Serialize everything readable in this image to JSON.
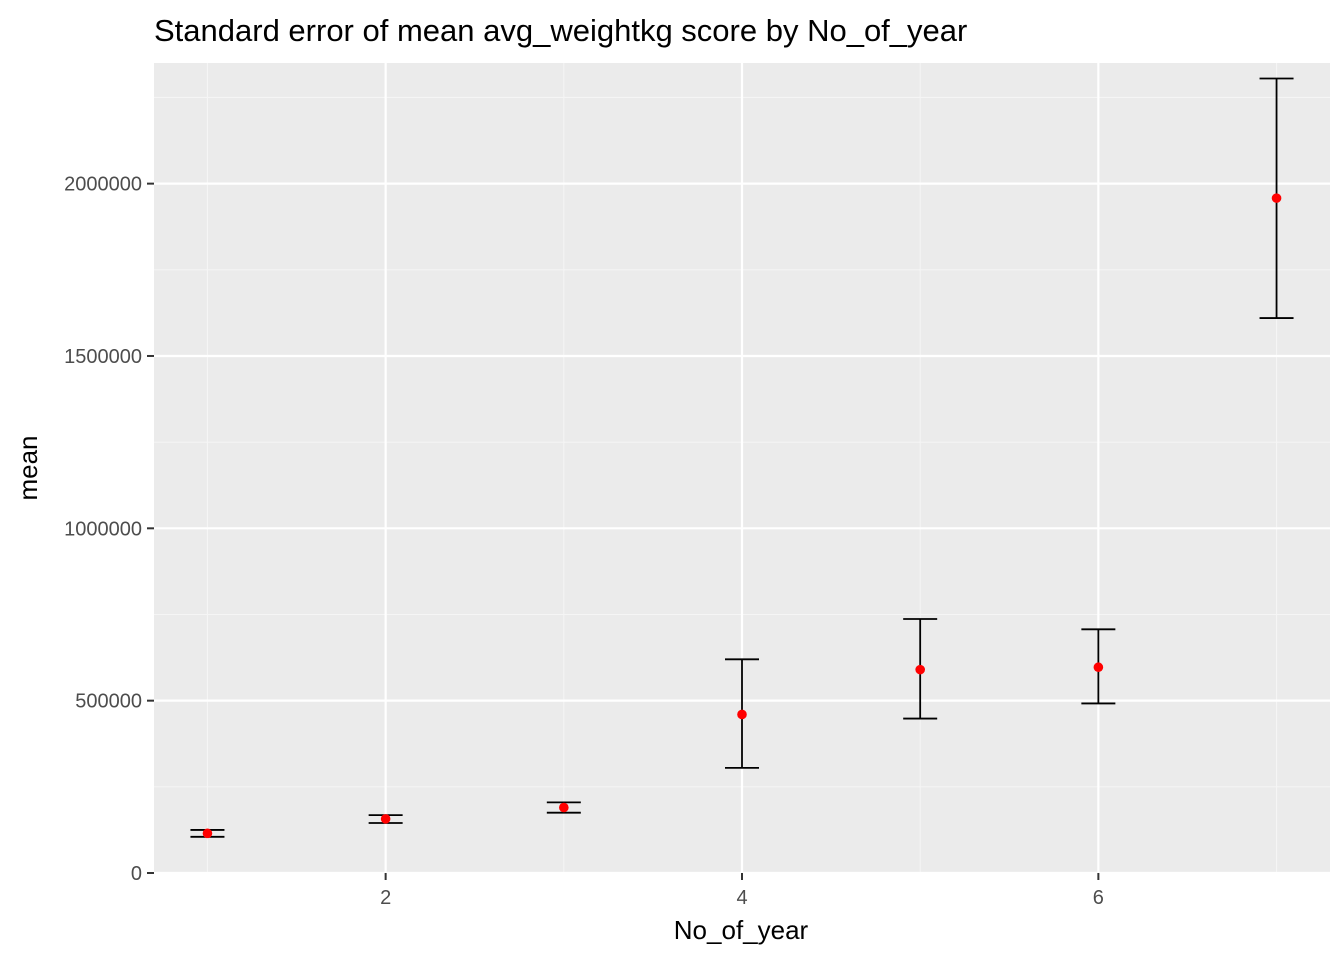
{
  "chart_data": {
    "type": "scatter",
    "title": "Standard error of mean avg_weightkg score by No_of_year",
    "xlabel": "No_of_year",
    "ylabel": "mean",
    "xlim": [
      0.7,
      7.3
    ],
    "ylim": [
      0,
      2350000
    ],
    "x_ticks": [
      2,
      4,
      6
    ],
    "x_tick_labels": [
      "2",
      "4",
      "6"
    ],
    "y_ticks": [
      0,
      500000,
      1000000,
      1500000,
      2000000
    ],
    "y_tick_labels": [
      "0",
      "500000",
      "1000000",
      "1500000",
      "2000000"
    ],
    "grid": true,
    "legend": "none",
    "points": [
      {
        "x": 1,
        "mean": 115000,
        "lower": 105000,
        "upper": 125000
      },
      {
        "x": 2,
        "mean": 157000,
        "lower": 145000,
        "upper": 168000
      },
      {
        "x": 3,
        "mean": 190000,
        "lower": 175000,
        "upper": 205000
      },
      {
        "x": 4,
        "mean": 460000,
        "lower": 305000,
        "upper": 620000
      },
      {
        "x": 5,
        "mean": 590000,
        "lower": 448000,
        "upper": 737000
      },
      {
        "x": 6,
        "mean": 597000,
        "lower": 492000,
        "upper": 707000
      },
      {
        "x": 7,
        "mean": 1958000,
        "lower": 1610000,
        "upper": 2305000
      }
    ],
    "colors": {
      "panel_background": "#ebebeb",
      "grid_major": "#ffffff",
      "grid_minor": "#f5f5f5",
      "point": "#ff0000",
      "errorbar": "#000000",
      "tick_mark": "#333333"
    }
  }
}
